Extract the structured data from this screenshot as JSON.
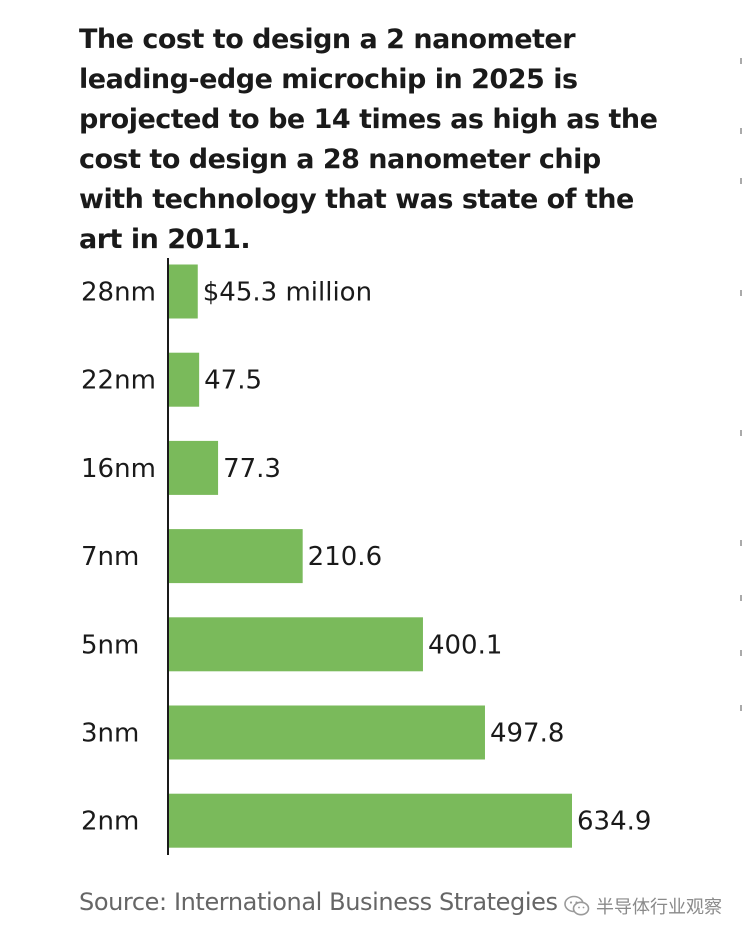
{
  "title": "The cost to design a 2 nanometer leading-edge microchip in 2025 is projected to be 14 times as high as the cost to design a 28 nanometer chip with technology that was state of the art in 2011.",
  "source": "Source: International Business Strategies",
  "watermark": {
    "icon": "wechat-icon",
    "text": "半导体行业观察"
  },
  "colors": {
    "bar": "#7aba5b",
    "axis": "#1a1a1a",
    "text": "#1a1a1a",
    "source": "#666666"
  },
  "chart_data": {
    "type": "bar",
    "orientation": "horizontal",
    "categories": [
      "28nm",
      "22nm",
      "16nm",
      "7nm",
      "5nm",
      "3nm",
      "2nm"
    ],
    "values": [
      45.3,
      47.5,
      77.3,
      210.6,
      400.1,
      497.8,
      634.9
    ],
    "data_labels": [
      "$45.3 million",
      "47.5",
      "77.3",
      "210.6",
      "400.1",
      "497.8",
      "634.9"
    ],
    "unit": "million US dollars",
    "xlim": [
      0,
      634.9
    ],
    "grid": false,
    "legend": "none"
  }
}
